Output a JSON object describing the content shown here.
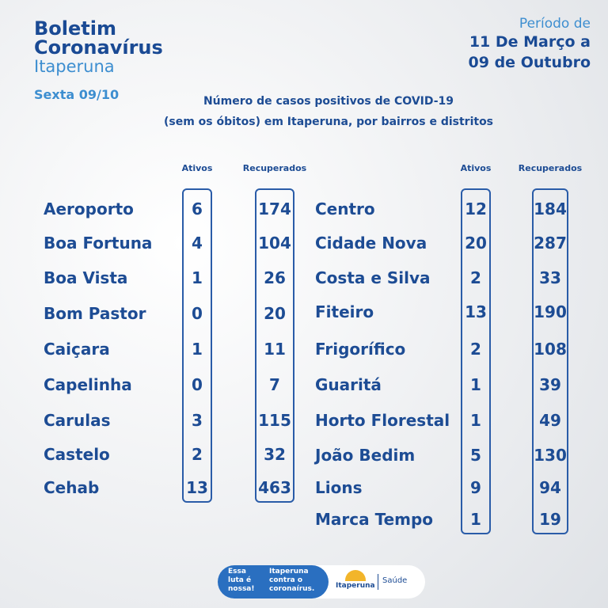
{
  "header": {
    "title1": "Boletim",
    "title2": "Coronavírus",
    "city": "Itaperuna",
    "date": "Sexta 09/10"
  },
  "period": [
    "Período de",
    "11 De Março a",
    "09 de Outubro"
  ],
  "subtitle": [
    "Número de casos positivos de COVID-19",
    "(sem os óbitos) em Itaperuna, por bairros e distritos"
  ],
  "tables": [
    {
      "columns": [
        "Ativos",
        "Recuperados"
      ],
      "rows": [
        [
          "Aeroporto",
          6,
          174
        ],
        [
          "Boa Fortuna",
          4,
          104
        ],
        [
          "Boa Vista",
          1,
          26
        ],
        [
          "Bom Pastor",
          0,
          20
        ],
        [
          "Caiçara",
          1,
          11
        ],
        [
          "Capelinha",
          0,
          7
        ],
        [
          "Carulas",
          3,
          115
        ],
        [
          "Castelo",
          2,
          32
        ],
        [
          "Cehab",
          13,
          463
        ]
      ]
    },
    {
      "columns": [
        "Ativos",
        "Recuperados"
      ],
      "rows": [
        [
          "Centro",
          12,
          184
        ],
        [
          "Cidade Nova",
          20,
          287
        ],
        [
          "Costa e Silva",
          2,
          33
        ],
        [
          "Fiteiro",
          13,
          190
        ],
        [
          "Frigorífico",
          2,
          108
        ],
        [
          "Guaritá",
          1,
          39
        ],
        [
          "Horto Florestal",
          1,
          49
        ],
        [
          "João Bedim",
          5,
          130
        ],
        [
          "Lions",
          9,
          94
        ],
        [
          "Marca Tempo",
          1,
          19
        ]
      ]
    }
  ],
  "footer": {
    "badge": [
      "Essa",
      "luta é",
      "nossa!"
    ],
    "slogan": [
      "Itaperuna",
      "contra o",
      "coronaírus."
    ],
    "logo": "Itaperuna",
    "dept": "Saúde"
  }
}
